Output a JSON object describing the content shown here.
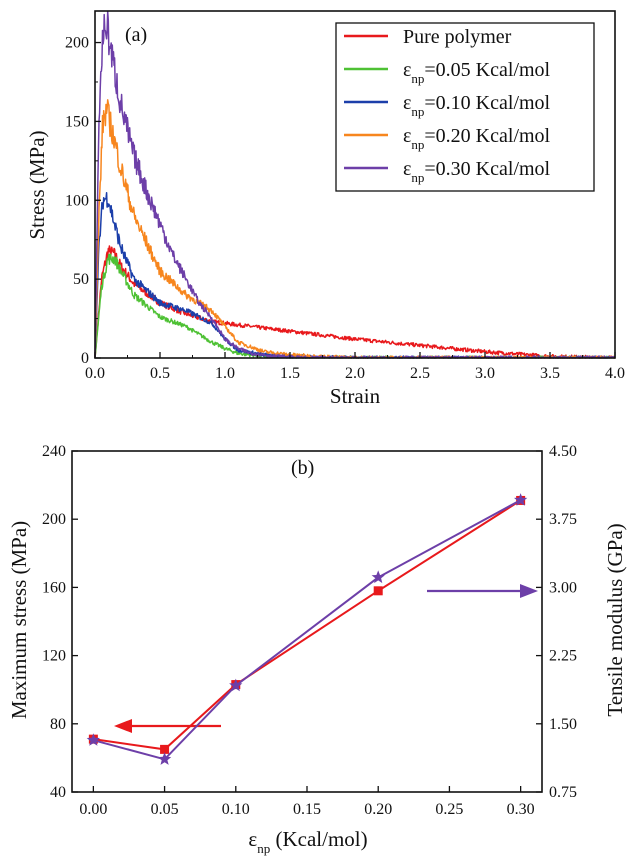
{
  "chart_data": [
    {
      "type": "line",
      "panel_label": "(a)",
      "xlabel": "Strain",
      "ylabel": "Stress (MPa)",
      "xlim": [
        0,
        4.0
      ],
      "ylim": [
        0,
        220
      ],
      "xticks": [
        "0.0",
        "0.5",
        "1.0",
        "1.5",
        "2.0",
        "2.5",
        "3.0",
        "3.5",
        "4.0"
      ],
      "xtick_values": [
        0,
        0.5,
        1.0,
        1.5,
        2.0,
        2.5,
        3.0,
        3.5,
        4.0
      ],
      "yticks": [
        "0",
        "50",
        "100",
        "150",
        "200"
      ],
      "ytick_values": [
        0,
        50,
        100,
        150,
        200
      ],
      "legend_position": "top-right",
      "series": [
        {
          "name": "Pure polymer",
          "legend_main": "Pure polymer",
          "legend_sub": "",
          "legend_tail": "",
          "color": "#e8191c",
          "x": [
            0,
            0.05,
            0.1,
            0.15,
            0.2,
            0.3,
            0.5,
            0.7,
            0.9,
            1.0,
            1.2,
            1.5,
            2.0,
            2.5,
            3.0,
            3.5,
            4.0
          ],
          "y": [
            0,
            50,
            68,
            66,
            58,
            47,
            35,
            28,
            23,
            22,
            20,
            17,
            12,
            8,
            4,
            1,
            0
          ]
        },
        {
          "name": "εnp=0.05 Kcal/mol",
          "legend_main": "ε",
          "legend_sub": "np",
          "legend_tail": "=0.05 Kcal/mol",
          "color": "#4ec134",
          "x": [
            0,
            0.05,
            0.1,
            0.15,
            0.2,
            0.3,
            0.5,
            0.7,
            0.9,
            1.0,
            1.1,
            1.3,
            1.5,
            2.0,
            4.0
          ],
          "y": [
            0,
            45,
            63,
            63,
            55,
            40,
            26,
            20,
            10,
            6,
            3,
            1,
            0,
            0,
            0
          ]
        },
        {
          "name": "εnp=0.10 Kcal/mol",
          "legend_main": "ε",
          "legend_sub": "np",
          "legend_tail": "=0.10 Kcal/mol",
          "color": "#1c3faa",
          "x": [
            0,
            0.03,
            0.06,
            0.1,
            0.15,
            0.2,
            0.3,
            0.5,
            0.7,
            0.9,
            1.0,
            1.1,
            1.3,
            1.5,
            2.0,
            4.0
          ],
          "y": [
            0,
            70,
            100,
            102,
            85,
            70,
            50,
            35,
            30,
            22,
            12,
            5,
            2,
            1,
            0,
            0
          ]
        },
        {
          "name": "εnp=0.20 Kcal/mol",
          "legend_main": "ε",
          "legend_sub": "np",
          "legend_tail": "=0.20 Kcal/mol",
          "color": "#f7861e",
          "x": [
            0,
            0.03,
            0.06,
            0.09,
            0.12,
            0.2,
            0.3,
            0.5,
            0.7,
            0.9,
            1.0,
            1.1,
            1.3,
            1.5,
            1.7,
            2.0,
            4.0
          ],
          "y": [
            0,
            90,
            150,
            157,
            148,
            120,
            90,
            55,
            40,
            30,
            20,
            10,
            4,
            2,
            1,
            0,
            0
          ]
        },
        {
          "name": "εnp=0.30 Kcal/mol",
          "legend_main": "ε",
          "legend_sub": "np",
          "legend_tail": "=0.30 Kcal/mol",
          "color": "#6d3fa8",
          "x": [
            0,
            0.03,
            0.06,
            0.09,
            0.12,
            0.2,
            0.3,
            0.4,
            0.5,
            0.6,
            0.7,
            0.8,
            0.9,
            1.0,
            1.1,
            1.2,
            1.4,
            1.6,
            2.0,
            4.0
          ],
          "y": [
            0,
            150,
            205,
            212,
            196,
            160,
            128,
            105,
            85,
            65,
            50,
            35,
            25,
            12,
            6,
            3,
            1,
            0,
            0,
            0
          ]
        }
      ]
    },
    {
      "type": "line",
      "panel_label": "(b)",
      "xlabel_main": "ε",
      "xlabel_sub": "np",
      "xlabel_tail": " (Kcal/mol)",
      "ylabel": "Maximum stress (MPa)",
      "y2label": "Tensile modulus (GPa)",
      "xlim": [
        -0.015,
        0.315
      ],
      "ylim": [
        40,
        240
      ],
      "y2lim": [
        0.75,
        4.5
      ],
      "xticks": [
        "0.00",
        "0.05",
        "0.10",
        "0.15",
        "0.20",
        "0.25",
        "0.30"
      ],
      "xtick_values": [
        0,
        0.05,
        0.1,
        0.15,
        0.2,
        0.25,
        0.3
      ],
      "yticks": [
        "40",
        "80",
        "120",
        "160",
        "200",
        "240"
      ],
      "ytick_values": [
        40,
        80,
        120,
        160,
        200,
        240
      ],
      "y2ticks": [
        "0.75",
        "1.50",
        "2.25",
        "3.00",
        "3.75",
        "4.50"
      ],
      "y2tick_values": [
        0.75,
        1.5,
        2.25,
        3.0,
        3.75,
        4.5
      ],
      "series": [
        {
          "axis": "left",
          "marker": "square",
          "color": "#e8191c",
          "x": [
            0,
            0.05,
            0.1,
            0.2,
            0.3
          ],
          "y": [
            71,
            65,
            103,
            158,
            211
          ]
        },
        {
          "axis": "right",
          "marker": "star",
          "color": "#6d3fa8",
          "x": [
            0,
            0.05,
            0.1,
            0.2,
            0.3
          ],
          "y": [
            1.32,
            1.11,
            1.92,
            3.11,
            3.96
          ]
        }
      ],
      "annotations": [
        {
          "type": "arrow",
          "direction": "left",
          "points_to": "left axis",
          "color": "#e8191c"
        },
        {
          "type": "arrow",
          "direction": "right",
          "points_to": "right axis",
          "color": "#6d3fa8"
        }
      ]
    }
  ]
}
